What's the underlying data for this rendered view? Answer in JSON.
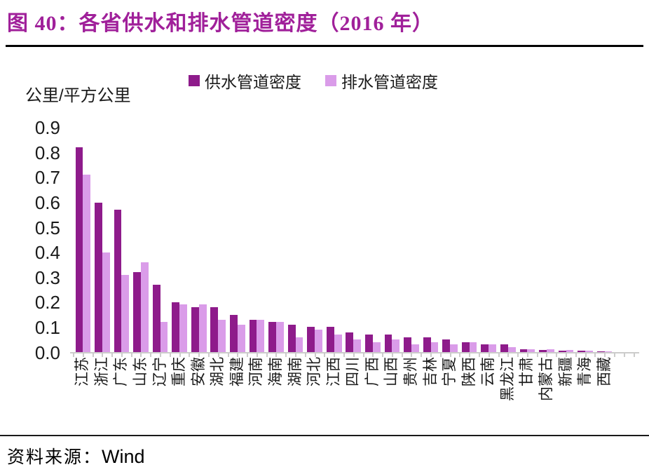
{
  "header": {
    "title": "图 40：各省供水和排水管道密度（2016 年）",
    "title_color": "#a0209a"
  },
  "footer": {
    "source_label": "资料来源：",
    "source_value": "Wind"
  },
  "chart_data": {
    "type": "bar",
    "title": "图 40：各省供水和排水管道密度（2016 年）",
    "unit_label": "公里/平方公里",
    "categories": [
      "江苏",
      "浙江",
      "广东",
      "山东",
      "辽宁",
      "重庆",
      "安徽",
      "湖北",
      "福建",
      "河南",
      "海南",
      "湖南",
      "河北",
      "江西",
      "四川",
      "广西",
      "山西",
      "贵州",
      "吉林",
      "宁夏",
      "陕西",
      "云南",
      "黑龙江",
      "甘肃",
      "内蒙古",
      "新疆",
      "青海",
      "西藏"
    ],
    "series": [
      {
        "name": "供水管道密度",
        "color": "#8e1b8b",
        "values": [
          0.82,
          0.6,
          0.57,
          0.32,
          0.27,
          0.2,
          0.18,
          0.18,
          0.15,
          0.13,
          0.12,
          0.11,
          0.1,
          0.1,
          0.08,
          0.07,
          0.07,
          0.06,
          0.06,
          0.05,
          0.04,
          0.03,
          0.03,
          0.012,
          0.008,
          0.007,
          0.005,
          0.003
        ]
      },
      {
        "name": "排水管道密度",
        "color": "#da9ce9",
        "values": [
          0.71,
          0.4,
          0.31,
          0.36,
          0.12,
          0.19,
          0.19,
          0.13,
          0.11,
          0.13,
          0.12,
          0.06,
          0.09,
          0.07,
          0.05,
          0.04,
          0.05,
          0.03,
          0.04,
          0.03,
          0.04,
          0.03,
          0.02,
          0.012,
          0.012,
          0.008,
          0.005,
          0.004
        ]
      }
    ],
    "ylim": [
      0,
      0.9
    ],
    "yticks": [
      "0.0",
      "0.1",
      "0.2",
      "0.3",
      "0.4",
      "0.5",
      "0.6",
      "0.7",
      "0.8",
      "0.9"
    ],
    "grid": false,
    "legend_position": "top-center",
    "axis_color": "#cccccb"
  }
}
